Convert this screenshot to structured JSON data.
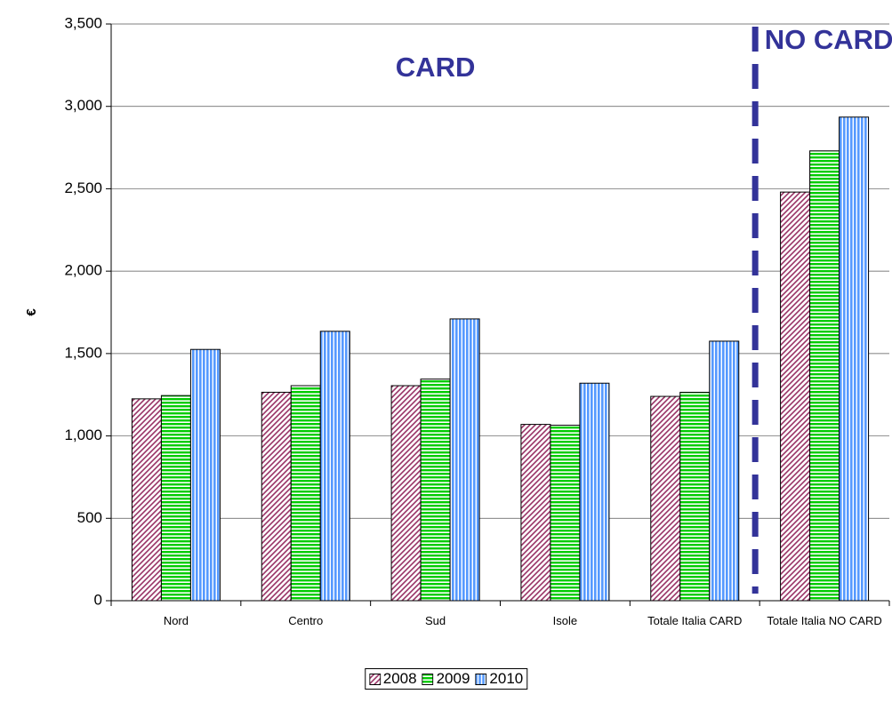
{
  "chart_data": {
    "type": "bar",
    "y_label": "€",
    "categories": [
      "Nord",
      "Centro",
      "Sud",
      "Isole",
      "Totale Italia CARD",
      "Totale Italia NO CARD"
    ],
    "series": [
      {
        "name": "2008",
        "color": "#993366",
        "values": [
          1225,
          1265,
          1305,
          1070,
          1240,
          2480
        ]
      },
      {
        "name": "2009",
        "color": "#00cc00",
        "values": [
          1245,
          1305,
          1345,
          1065,
          1265,
          2730
        ]
      },
      {
        "name": "2010",
        "color": "#5599ff",
        "values": [
          1525,
          1635,
          1710,
          1320,
          1575,
          2935
        ]
      }
    ],
    "ylim": [
      0,
      3500
    ],
    "yticks": [
      0,
      500,
      {
        "value": 1000,
        "label": "1,000"
      },
      {
        "value": 1500,
        "label": "1,500"
      },
      {
        "value": 2000,
        "label": "2,000"
      },
      {
        "value": 2500,
        "label": "2,500"
      },
      {
        "value": 3000,
        "label": "3,000"
      },
      {
        "value": 3500,
        "label": "3,500"
      }
    ],
    "grid": true,
    "annotations": [
      "CARD",
      "NO CARD"
    ]
  }
}
